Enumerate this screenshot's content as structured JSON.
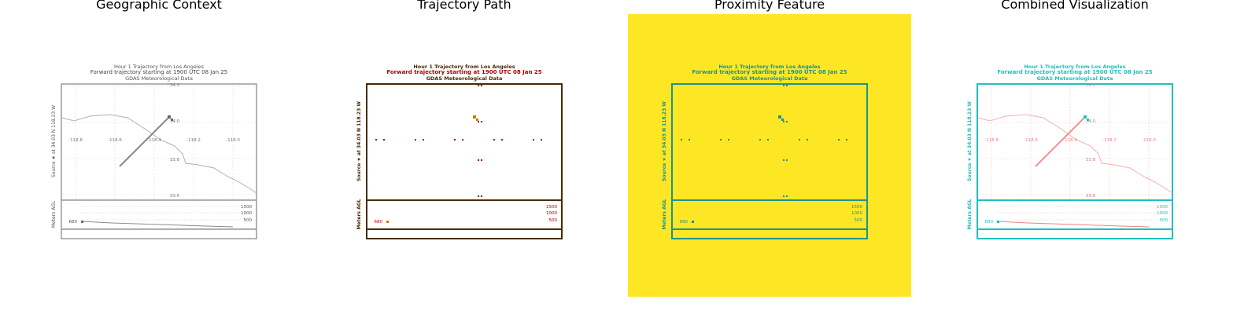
{
  "panels": [
    {
      "title": "Geographic Context",
      "variant": "geo",
      "bg": "#ffffff",
      "ink": "#9a9a9a",
      "traj": "#8a8a8a"
    },
    {
      "title": "Trajectory Path",
      "variant": "traj",
      "bg": "#ffffff",
      "ink": "#4a2a00",
      "traj": "#c08000"
    },
    {
      "title": "Proximity Feature",
      "variant": "prox",
      "bg": "#fde725",
      "ink": "#21918c",
      "traj": "#21918c"
    },
    {
      "title": "Combined Visualization",
      "variant": "comb",
      "bg": "#ffffff",
      "ink": "#20c0c0",
      "traj": "#f08080"
    }
  ],
  "figure": {
    "header_line1": "Hour 1 Trajectory from Los Angeles",
    "header_line2": "Forward trajectory starting at 1900 UTC 08 Jan 25",
    "header_line3": "GDAS Meteorological Data",
    "source_label": "Source ★ at 34.03 N 118.23 W",
    "lon_ticks": [
      "-118.8",
      "-118.6",
      "-118.4",
      "-118.2",
      "-118.0"
    ],
    "lat_ticks": [
      "34.2",
      "34.0",
      "33.8",
      "33.6"
    ],
    "height_label": "Meters AGL",
    "height_ticks": [
      "1500",
      "1000",
      "500"
    ],
    "height_start": "680"
  },
  "colors": {
    "geo_bg": "#ffffff",
    "prox_bg": "#fde725",
    "prox_ink": "#21918c",
    "comb_ink": "#20c0c0",
    "comb_traj": "#f08080"
  }
}
